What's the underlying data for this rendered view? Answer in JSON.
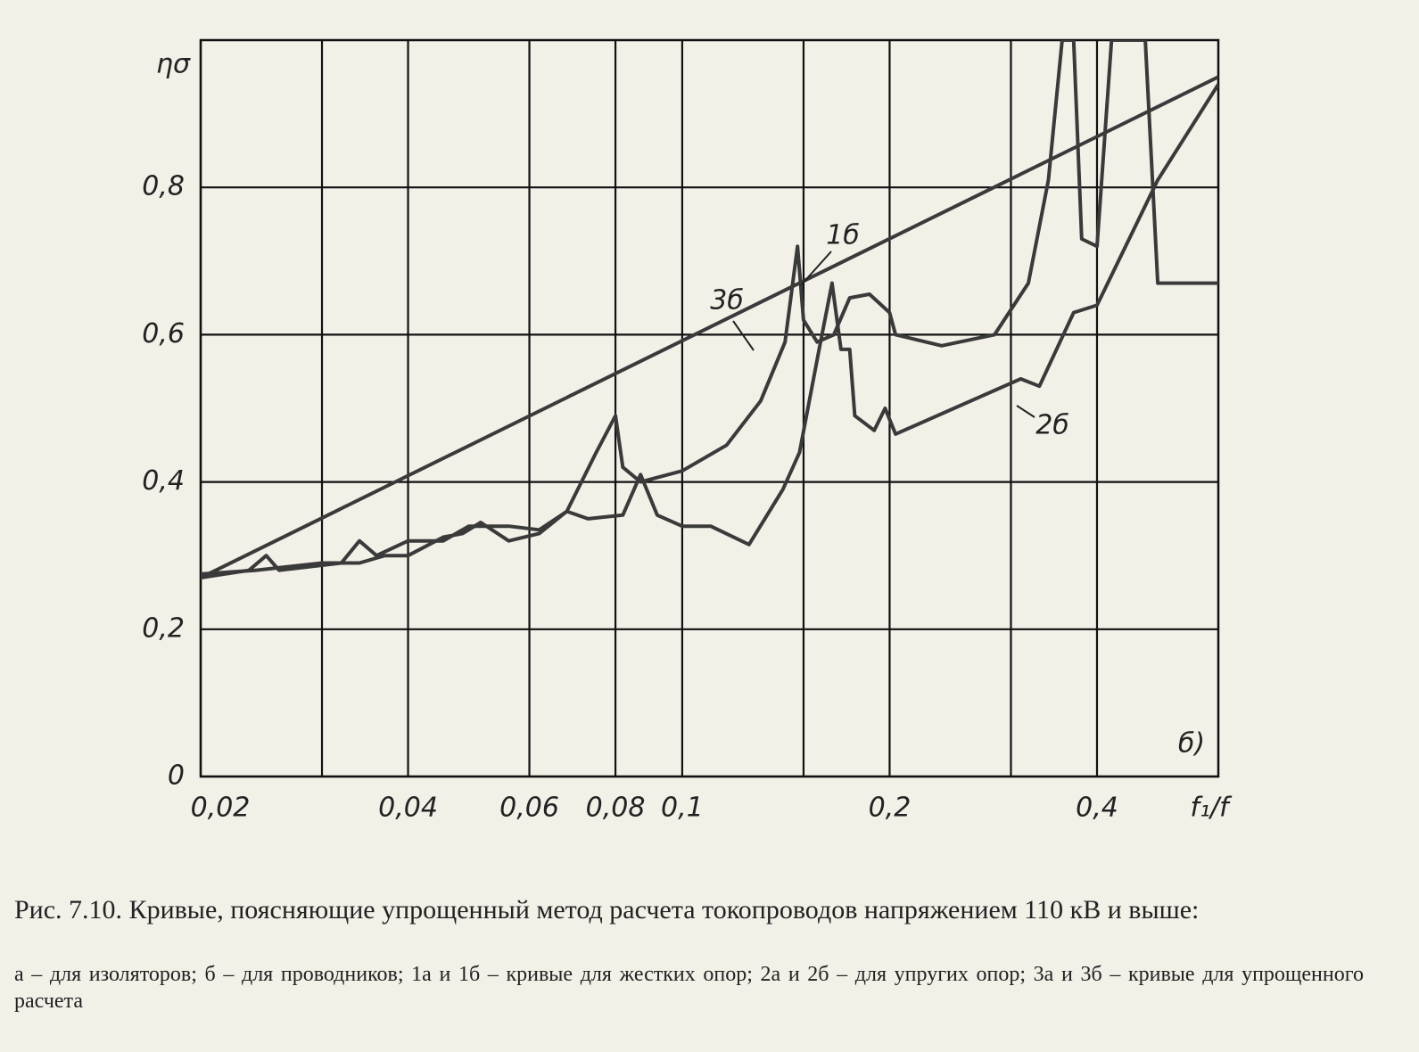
{
  "chart_data": {
    "type": "line",
    "ylabel": "ησ",
    "xlabel": "f₁/f",
    "panel_label": "б)",
    "xlog": true,
    "grid": true,
    "xlim": [
      0.02,
      0.6
    ],
    "ylim": [
      0,
      1
    ],
    "xticks": [
      {
        "value": 0.02,
        "label": "0,02"
      },
      {
        "value": 0.04,
        "label": "0,04"
      },
      {
        "value": 0.06,
        "label": "0,06"
      },
      {
        "value": 0.08,
        "label": "0,08"
      },
      {
        "value": 0.1,
        "label": "0,1"
      },
      {
        "value": 0.2,
        "label": "0,2"
      },
      {
        "value": 0.4,
        "label": "0,4"
      }
    ],
    "x_minor_gridlines": [
      0.03,
      0.15,
      0.3
    ],
    "yticks": [
      0,
      {
        "value": 0.2,
        "label": "0,2"
      },
      {
        "value": 0.4,
        "label": "0,4"
      },
      {
        "value": 0.6,
        "label": "0,6"
      },
      {
        "value": 0.8,
        "label": "0,8"
      }
    ],
    "series": [
      {
        "name": "1б",
        "color": "#3a3a3a",
        "x": [
          0.02,
          0.0235,
          0.0249,
          0.026,
          0.032,
          0.034,
          0.036,
          0.04,
          0.045,
          0.049,
          0.056,
          0.062,
          0.068,
          0.075,
          0.08,
          0.082,
          0.087,
          0.1,
          0.116,
          0.13,
          0.141,
          0.147,
          0.15,
          0.157,
          0.166,
          0.175,
          0.187,
          0.2,
          0.204,
          0.238,
          0.284,
          0.318,
          0.34,
          0.356,
          0.37,
          0.38,
          0.4,
          0.42,
          0.47,
          0.49,
          0.6
        ],
        "values": [
          0.27,
          0.28,
          0.3,
          0.28,
          0.29,
          0.32,
          0.3,
          0.32,
          0.32,
          0.34,
          0.34,
          0.335,
          0.36,
          0.44,
          0.49,
          0.42,
          0.4,
          0.415,
          0.45,
          0.51,
          0.59,
          0.72,
          0.62,
          0.59,
          0.6,
          0.65,
          0.655,
          0.63,
          0.6,
          0.585,
          0.6,
          0.67,
          0.81,
          1.0,
          1.0,
          0.73,
          0.72,
          1.0,
          1.0,
          0.67,
          0.67
        ]
      },
      {
        "name": "2б",
        "color": "#3a3a3a",
        "x": [
          0.02,
          0.024,
          0.03,
          0.034,
          0.037,
          0.04,
          0.045,
          0.048,
          0.051,
          0.056,
          0.062,
          0.068,
          0.073,
          0.082,
          0.087,
          0.092,
          0.1,
          0.11,
          0.125,
          0.14,
          0.148,
          0.158,
          0.165,
          0.17,
          0.175,
          0.178,
          0.19,
          0.197,
          0.204,
          0.31,
          0.33,
          0.37,
          0.4,
          0.49,
          0.6
        ],
        "values": [
          0.275,
          0.28,
          0.29,
          0.29,
          0.3,
          0.3,
          0.325,
          0.33,
          0.345,
          0.32,
          0.33,
          0.36,
          0.35,
          0.355,
          0.41,
          0.355,
          0.34,
          0.34,
          0.315,
          0.39,
          0.44,
          0.58,
          0.67,
          0.58,
          0.58,
          0.49,
          0.47,
          0.5,
          0.465,
          0.54,
          0.53,
          0.63,
          0.64,
          0.81,
          0.94
        ]
      },
      {
        "name": "3б",
        "color": "#3a3a3a",
        "x": [
          0.02,
          0.6
        ],
        "values": [
          0.27,
          0.95
        ]
      }
    ]
  },
  "caption": {
    "title": "Рис. 7.10. Кривые, поясняющие упрощенный метод расчета токопроводов напряжением 110 кВ и выше:",
    "text": "а – для изоляторов; б – для проводников; 1а и 1б – кривые для жестких опор; 2а и 2б – для упругих опор; 3а и 3б – кривые для упрощенного расчета"
  }
}
